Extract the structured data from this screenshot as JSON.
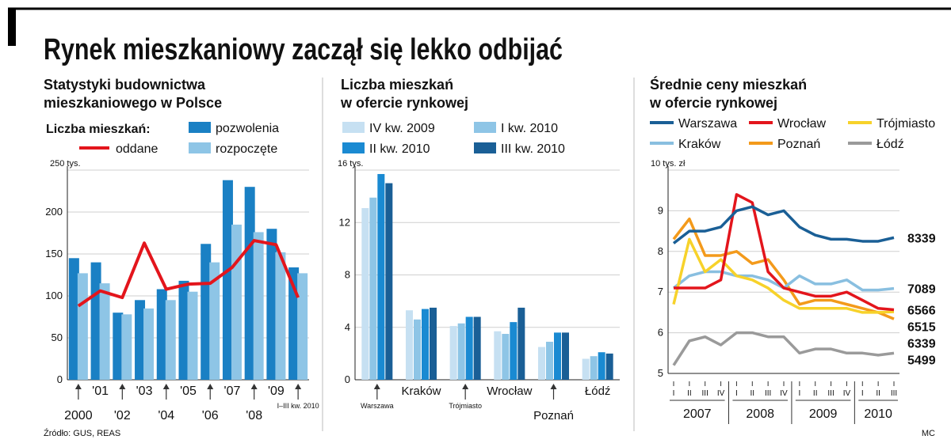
{
  "title": "Rynek mieszkaniowy zaczął się lekko odbijać",
  "source": "Źródło: GUS, REAS",
  "signature": "MC",
  "chart_data": [
    {
      "type": "bar",
      "title": [
        "Statystyki budownictwa",
        "mieszkaniowego w Polsce"
      ],
      "legend_title": "Liczba mieszkań:",
      "categories": [
        "2000",
        "'01",
        "'02",
        "'03",
        "'04",
        "'05",
        "'06",
        "'07",
        "'08",
        "'09",
        "I–III kw. 2010"
      ],
      "series": [
        {
          "name": "pozwolenia",
          "kind": "bar",
          "color": "#1a80c4",
          "values": [
            145,
            140,
            80,
            95,
            108,
            118,
            162,
            238,
            230,
            180,
            134
          ]
        },
        {
          "name": "rozpoczęte",
          "kind": "bar",
          "color": "#8ec5e6",
          "values": [
            127,
            115,
            78,
            85,
            95,
            105,
            140,
            185,
            176,
            152,
            127
          ]
        },
        {
          "name": "oddane",
          "kind": "line",
          "color": "#e3151c",
          "values": [
            88,
            106,
            98,
            163,
            108,
            114,
            115,
            134,
            166,
            161,
            98
          ]
        }
      ],
      "ylim": [
        0,
        250
      ],
      "yticks": [
        0,
        50,
        100,
        150,
        200,
        {
          "value": 250,
          "label": "250 tys."
        }
      ],
      "grid": true
    },
    {
      "type": "bar",
      "title": [
        "Liczba mieszkań",
        "w ofercie rynkowej"
      ],
      "categories": [
        "Warszawa",
        "Kraków",
        "Trójmiasto",
        "Wrocław",
        "Poznań",
        "Łódź"
      ],
      "series": [
        {
          "name": "IV kw. 2009",
          "kind": "bar",
          "color": "#c6e0f2",
          "values": [
            13.1,
            5.3,
            4.1,
            3.7,
            2.5,
            1.6
          ]
        },
        {
          "name": "I kw.  2010",
          "kind": "bar",
          "color": "#8ec5e6",
          "values": [
            13.9,
            4.6,
            4.3,
            3.5,
            2.9,
            1.8
          ]
        },
        {
          "name": "II kw. 2010",
          "kind": "bar",
          "color": "#1a8ad2",
          "values": [
            15.7,
            5.4,
            4.8,
            4.4,
            3.6,
            2.1
          ]
        },
        {
          "name": "III kw. 2010",
          "kind": "bar",
          "color": "#1a5f96",
          "values": [
            15.0,
            5.5,
            4.8,
            5.5,
            3.6,
            2.0
          ]
        }
      ],
      "ylim": [
        0,
        16
      ],
      "yticks": [
        0,
        4,
        8,
        12,
        {
          "value": 16,
          "label": "16 tys."
        }
      ],
      "grid": true
    },
    {
      "type": "line",
      "title": [
        "Średnie ceny mieszkań",
        "w ofercie rynkowej"
      ],
      "categories": [
        "I",
        "II",
        "III",
        "IV",
        "I",
        "II",
        "III",
        "IV",
        "I",
        "II",
        "III",
        "IV",
        "I",
        "II",
        "III"
      ],
      "years": [
        "2007",
        "2008",
        "2009",
        "2010"
      ],
      "series": [
        {
          "name": "Warszawa",
          "color": "#1a5f96",
          "values": [
            8.2,
            8.5,
            8.5,
            8.6,
            9.0,
            9.1,
            8.9,
            9.0,
            8.6,
            8.4,
            8.3,
            8.3,
            8.25,
            8.25,
            8.339
          ],
          "value_labels": [
            null,
            null,
            null,
            null,
            null,
            null,
            null,
            null,
            null,
            null,
            null,
            null,
            null,
            null,
            "8339"
          ]
        },
        {
          "name": "Wrocław",
          "color": "#e3151c",
          "values": [
            7.1,
            7.1,
            7.1,
            7.3,
            9.4,
            9.2,
            7.5,
            7.1,
            7.0,
            6.9,
            6.9,
            7.0,
            6.8,
            6.6,
            6.566
          ],
          "value_labels": [
            null,
            null,
            null,
            null,
            null,
            null,
            null,
            null,
            null,
            null,
            null,
            null,
            null,
            null,
            "6566"
          ]
        },
        {
          "name": "Trójmiasto",
          "color": "#f7d22a",
          "values": [
            6.7,
            8.3,
            7.5,
            7.8,
            7.4,
            7.3,
            7.1,
            6.8,
            6.6,
            6.6,
            6.6,
            6.6,
            6.5,
            6.5,
            6.515
          ],
          "value_labels": [
            null,
            null,
            null,
            null,
            null,
            null,
            null,
            null,
            null,
            null,
            null,
            null,
            null,
            null,
            "6515"
          ]
        },
        {
          "name": "Kraków",
          "color": "#89bfe0",
          "values": [
            7.1,
            7.4,
            7.5,
            7.5,
            7.4,
            7.4,
            7.3,
            7.1,
            7.4,
            7.2,
            7.2,
            7.3,
            7.05,
            7.05,
            7.089
          ],
          "value_labels": [
            null,
            null,
            null,
            null,
            null,
            null,
            null,
            null,
            null,
            null,
            null,
            null,
            null,
            null,
            "7089"
          ]
        },
        {
          "name": "Poznań",
          "color": "#f39a1b",
          "values": [
            8.3,
            8.8,
            7.9,
            7.9,
            8.0,
            7.7,
            7.8,
            7.3,
            6.7,
            6.8,
            6.8,
            6.7,
            6.6,
            6.5,
            6.339
          ],
          "value_labels": [
            null,
            null,
            null,
            null,
            null,
            null,
            null,
            null,
            null,
            null,
            null,
            null,
            null,
            null,
            "6339"
          ]
        },
        {
          "name": "Łódź",
          "color": "#9a9a9a",
          "values": [
            5.2,
            5.8,
            5.9,
            5.7,
            6.0,
            6.0,
            5.9,
            5.9,
            5.5,
            5.6,
            5.6,
            5.5,
            5.5,
            5.45,
            5.499
          ],
          "value_labels": [
            null,
            null,
            null,
            null,
            null,
            null,
            null,
            null,
            null,
            null,
            null,
            null,
            null,
            null,
            "5499"
          ]
        }
      ],
      "ylim": [
        5,
        10
      ],
      "yticks": [
        5,
        6,
        7,
        8,
        9,
        {
          "value": 10,
          "label": "10 tys. zł"
        }
      ],
      "grid": true
    }
  ]
}
